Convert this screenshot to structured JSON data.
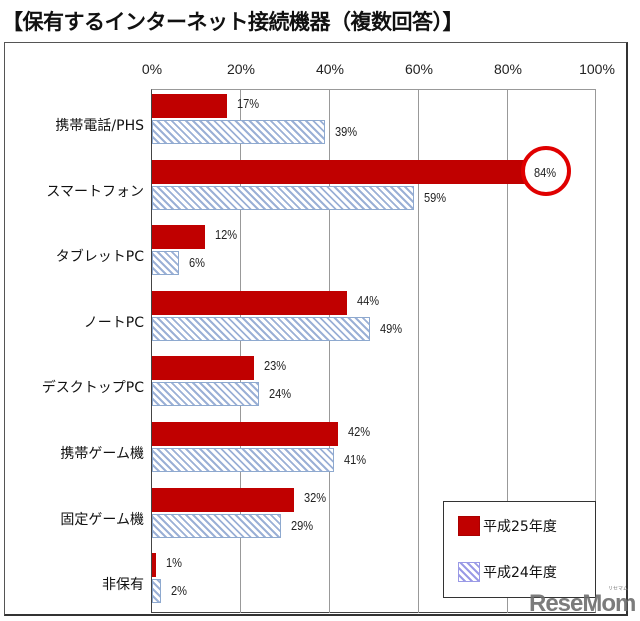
{
  "title": "【保有するインターネット接続機器（複数回答）】",
  "chart_data": {
    "type": "bar",
    "orientation": "horizontal",
    "title": "【保有するインターネット接続機器（複数回答）】",
    "categories": [
      "携帯電話/PHS",
      "スマートフォン",
      "タブレットPC",
      "ノートPC",
      "デスクトップPC",
      "携帯ゲーム機",
      "固定ゲーム機",
      "非保有"
    ],
    "series": [
      {
        "name": "平成25年度",
        "color": "#c00000",
        "pattern": "solid",
        "values": [
          17,
          84,
          12,
          44,
          23,
          42,
          32,
          1
        ]
      },
      {
        "name": "平成24年度",
        "color": "#9bb0d6",
        "pattern": "diagonal-hatch",
        "values": [
          39,
          59,
          6,
          49,
          24,
          41,
          29,
          2
        ]
      }
    ],
    "xlabel": "",
    "ylabel": "",
    "xlim": [
      0,
      100
    ],
    "x_ticks": [
      "0%",
      "20%",
      "40%",
      "60%",
      "80%",
      "100%"
    ],
    "grid": true,
    "legend_position": "bottom-right",
    "annotations": [
      {
        "type": "circle",
        "target": "スマートフォン 平成25年度",
        "label": "84%",
        "color": "#e00000"
      }
    ]
  },
  "axis": {
    "ticks": [
      "0%",
      "20%",
      "40%",
      "60%",
      "80%",
      "100%"
    ]
  },
  "rows": [
    {
      "label": "携帯電話/PHS",
      "v25": "17%",
      "v24": "39%"
    },
    {
      "label": "スマートフォン",
      "v25": "84%",
      "v24": "59%"
    },
    {
      "label": "タブレットPC",
      "v25": "12%",
      "v24": "6%"
    },
    {
      "label": "ノートPC",
      "v25": "44%",
      "v24": "49%"
    },
    {
      "label": "デスクトップPC",
      "v25": "23%",
      "v24": "24%"
    },
    {
      "label": "携帯ゲーム機",
      "v25": "42%",
      "v24": "41%"
    },
    {
      "label": "固定ゲーム機",
      "v25": "32%",
      "v24": "29%"
    },
    {
      "label": "非保有",
      "v25": "1%",
      "v24": "2%"
    }
  ],
  "legend": {
    "s25": "平成25年度",
    "s24": "平成24年度"
  },
  "watermark": {
    "text": "ReseMom",
    "small": "リセマム"
  }
}
